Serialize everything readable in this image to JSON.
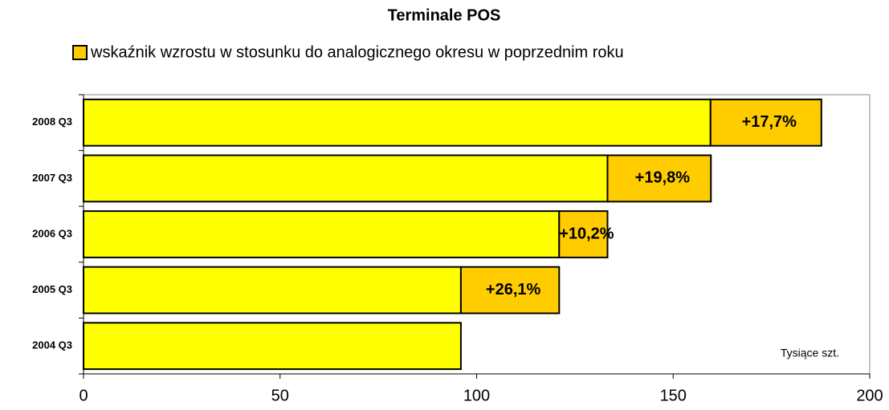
{
  "chart_data": {
    "type": "stacked_bar_horizontal",
    "title": "Terminale POS",
    "categories": [
      "2004 Q3",
      "2005 Q3",
      "2006 Q3",
      "2007 Q3",
      "2008 Q3"
    ],
    "series": [
      {
        "color": "#ffff00",
        "values": [
          96,
          96,
          121,
          133.3,
          159.5
        ]
      },
      {
        "name": "wskaźnik wzrostu w stosunku do analogicznego okresu w poprzednim roku",
        "color": "#ffcc00",
        "values": [
          null,
          25,
          12.3,
          26.3,
          28.2
        ],
        "labels": [
          null,
          "+26,1%",
          "+10,2%",
          "+19,8%",
          "+17,7%"
        ]
      }
    ],
    "xlim": [
      0,
      200
    ],
    "xticks": [
      0,
      50,
      100,
      150,
      200
    ],
    "unit_note": "Tysiące szt."
  }
}
